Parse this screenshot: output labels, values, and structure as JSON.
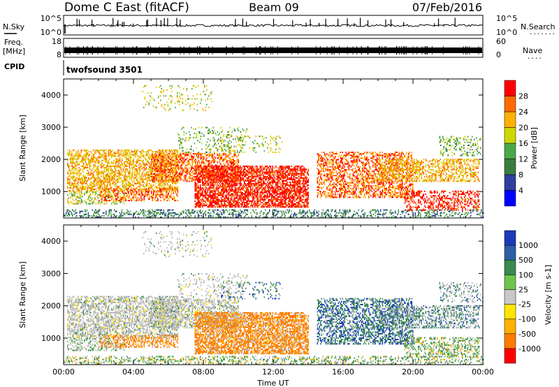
{
  "header": {
    "station": "Dome C East (fitACF)",
    "beam": "Beam 09",
    "date": "07/Feb/2016",
    "cpid_name": "twofsound 3501"
  },
  "left_labels": {
    "nsky": "N.Sky",
    "freq": "Freq.",
    "freq_unit": "[MHz]",
    "cpid": "CPID"
  },
  "right_labels": {
    "nsearch": "N.Search",
    "nave": "Nave"
  },
  "colors": {
    "power_scale": [
      "#0000ff",
      "#2e3fa0",
      "#3a7d3f",
      "#4aa84a",
      "#cfd600",
      "#ffb000",
      "#ff6a00",
      "#ff0000"
    ],
    "velocity_scale": [
      "#1b3ab8",
      "#2d5ea6",
      "#3a8a50",
      "#6fc44a",
      "#c8c8c8",
      "#ffe600",
      "#ffb000",
      "#ff7a00",
      "#ff0000"
    ],
    "ground_scatter": "#b8b8b8"
  },
  "chart_data": [
    {
      "type": "line",
      "name": "noise-panel",
      "left_axis": {
        "label": "N.Sky",
        "ticks": [
          "10^5",
          "10^0"
        ],
        "scale": "log"
      },
      "right_axis": {
        "label": "N.Search",
        "ticks": [
          "10^5",
          "10^0"
        ],
        "scale": "log"
      },
      "x_ticks": [
        "00:00",
        "04:00",
        "08:00",
        "12:00",
        "16:00",
        "20:00",
        "00:00"
      ]
    },
    {
      "type": "line",
      "name": "freq-nave-panel",
      "left_axis": {
        "label": "Freq. [MHz]",
        "ticks": [
          "18",
          "8"
        ],
        "ylim": [
          8,
          18
        ]
      },
      "right_axis": {
        "label": "Nave",
        "ticks": [
          "60",
          "0"
        ],
        "ylim": [
          0,
          60
        ]
      }
    },
    {
      "type": "heatmap",
      "name": "power",
      "title": "",
      "ylabel": "Slant Range [km]",
      "yticks": [
        1000,
        2000,
        3000,
        4000
      ],
      "ylim": [
        180,
        4500
      ],
      "xlim_hours": [
        0,
        24
      ],
      "xticks": [
        "00:00",
        "04:00",
        "08:00",
        "12:00",
        "16:00",
        "20:00",
        "00:00"
      ],
      "colorbar_label": "Power [dB]",
      "colorbar_ticks": [
        4,
        8,
        12,
        16,
        20,
        24,
        28
      ]
    },
    {
      "type": "heatmap",
      "name": "velocity",
      "title": "",
      "ylabel": "Slant Range [km]",
      "yticks": [
        1000,
        2000,
        3000,
        4000
      ],
      "ylim": [
        180,
        4500
      ],
      "xlim_hours": [
        0,
        24
      ],
      "xticks": [
        "00:00",
        "04:00",
        "08:00",
        "12:00",
        "16:00",
        "20:00",
        "00:00"
      ],
      "xlabel": "Time UT",
      "colorbar_label": "Velocity [m s-1]",
      "colorbar_ticks": [
        "1000",
        "500",
        "100",
        "25",
        "-25",
        "-100",
        "-500",
        "-1000"
      ]
    }
  ]
}
